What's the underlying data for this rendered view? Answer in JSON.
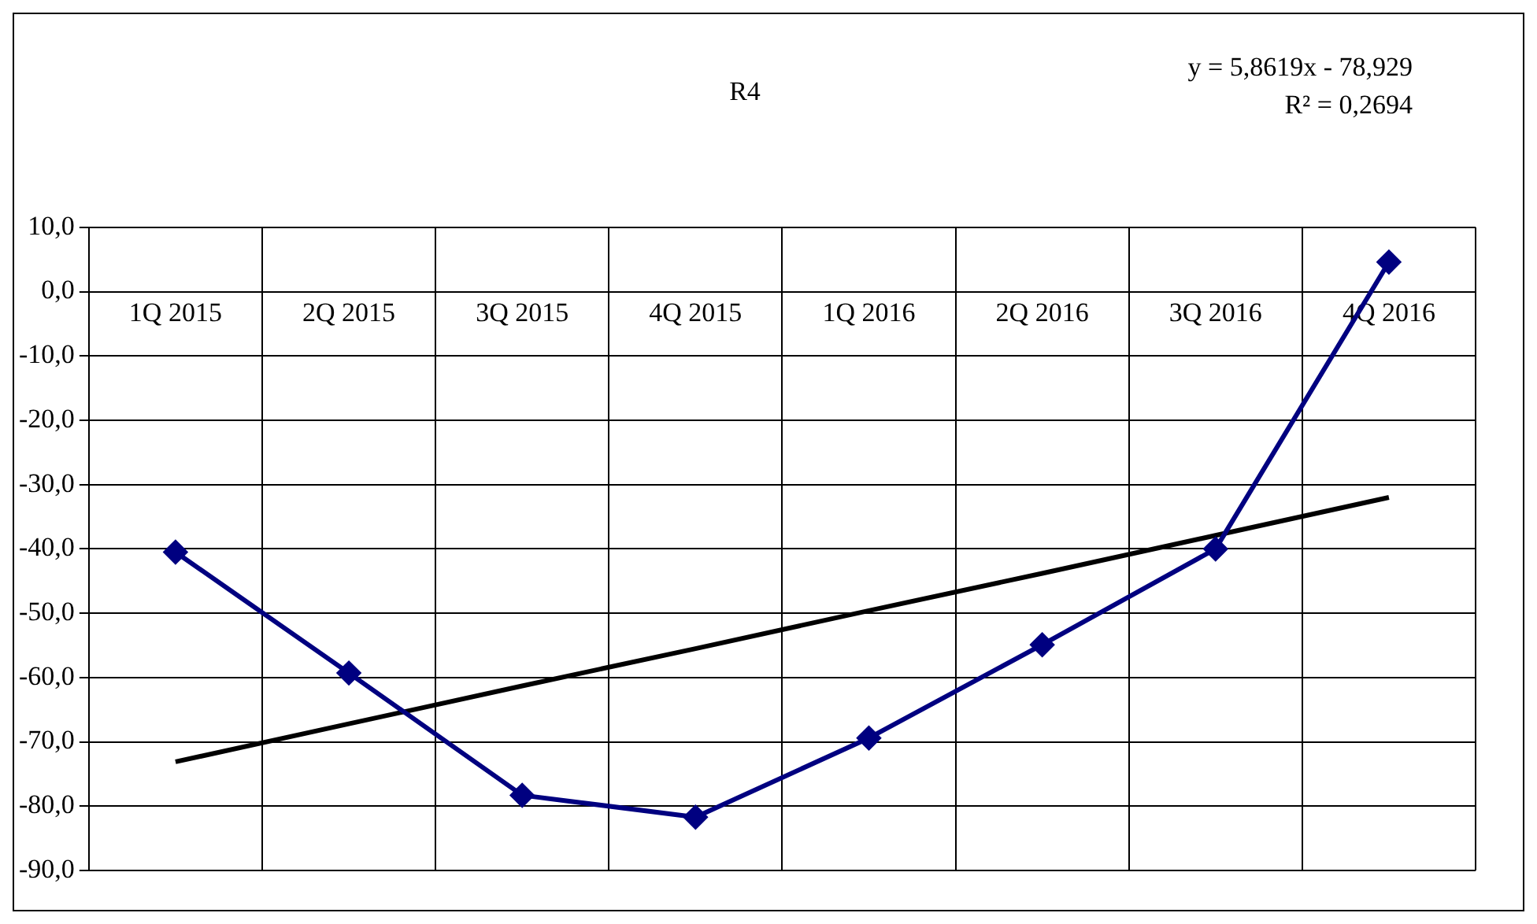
{
  "chart_data": {
    "type": "line",
    "title": "R4",
    "annotations": [
      "y = 5,8619x - 78,929",
      "R² = 0,2694"
    ],
    "categories": [
      "1Q 2015",
      "2Q 2015",
      "3Q 2015",
      "4Q 2015",
      "1Q 2016",
      "2Q 2016",
      "3Q 2016",
      "4Q 2016"
    ],
    "series": [
      {
        "color": "#000080",
        "values": [
          -40.5,
          -59.3,
          -78.3,
          -81.7,
          -69.4,
          -54.9,
          -40.0,
          4.6
        ],
        "marker": "diamond"
      },
      {
        "type": "line",
        "color": "#000000",
        "values": [
          -73.1,
          -67.2,
          -61.3,
          -55.5,
          -49.6,
          -43.8,
          -37.9,
          -32.0
        ],
        "marker": "none"
      }
    ],
    "ylim": [
      -90,
      10
    ],
    "yticks": [
      {
        "value": 10,
        "label": "10,0"
      },
      {
        "value": 0,
        "label": "0,0"
      },
      {
        "value": -10,
        "label": "-10,0"
      },
      {
        "value": -20,
        "label": "-20,0"
      },
      {
        "value": -30,
        "label": "-30,0"
      },
      {
        "value": -40,
        "label": "-40,0"
      },
      {
        "value": -50,
        "label": "-50,0"
      },
      {
        "value": -60,
        "label": "-60,0"
      },
      {
        "value": -70,
        "label": "-70,0"
      },
      {
        "value": -80,
        "label": "-80,0"
      },
      {
        "value": -90,
        "label": "-90,0"
      }
    ],
    "grid": true,
    "legend": false
  }
}
